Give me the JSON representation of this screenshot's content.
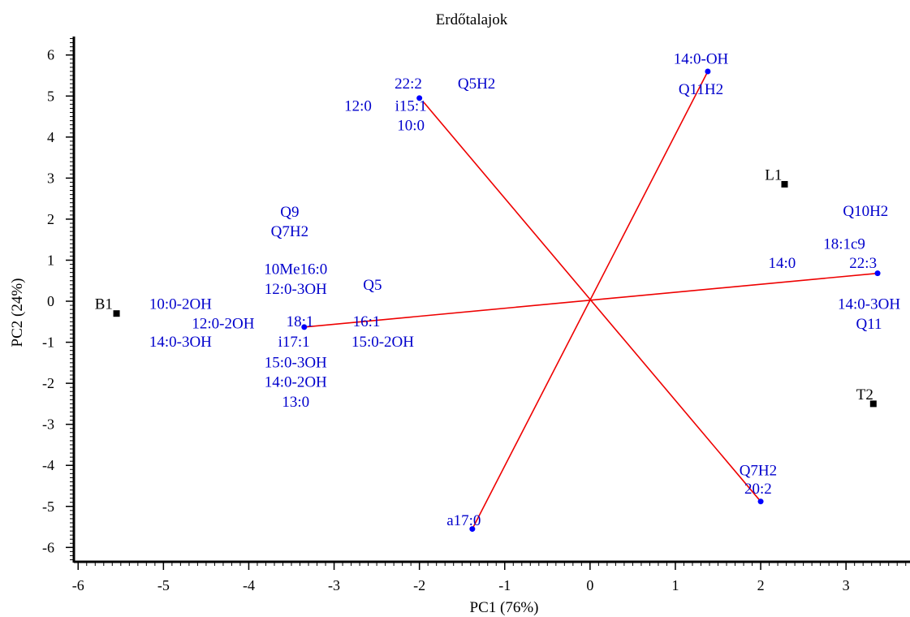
{
  "chart_data": {
    "type": "scatter",
    "title": "Erdőtalajok",
    "xlabel": "PC1 (76%)",
    "ylabel": "PC2 (24%)",
    "xlim": [
      -6.05,
      3.75
    ],
    "ylim": [
      -6.35,
      6.45
    ],
    "xticks": [
      -6,
      -5,
      -4,
      -3,
      -2,
      -1,
      0,
      1,
      2,
      3
    ],
    "yticks": [
      -6,
      -5,
      -4,
      -3,
      -2,
      -1,
      0,
      1,
      2,
      3,
      4,
      5,
      6
    ],
    "colors": {
      "axis": "#000000",
      "sample": "#000000",
      "loading": "#0000ff",
      "vector": "#ee0000",
      "label": "#0000cc"
    },
    "samples": [
      {
        "name": "B1",
        "x": -5.55,
        "y": -0.3
      },
      {
        "name": "L1",
        "x": 2.28,
        "y": 2.85
      },
      {
        "name": "T2",
        "x": 3.32,
        "y": -2.5
      }
    ],
    "loadings": [
      {
        "x": 1.38,
        "y": 5.6
      },
      {
        "x": -2.0,
        "y": 4.95
      },
      {
        "x": -3.35,
        "y": -0.63
      },
      {
        "x": 3.37,
        "y": 0.68
      },
      {
        "x": 2.0,
        "y": -4.88
      },
      {
        "x": -1.38,
        "y": -5.55
      }
    ],
    "vectors": [
      {
        "x1": -1.95,
        "y1": 4.85,
        "x2": 2.0,
        "y2": -4.88
      },
      {
        "x1": -3.35,
        "y1": -0.63,
        "x2": 3.37,
        "y2": 0.68
      },
      {
        "x1": 1.38,
        "y1": 5.6,
        "x2": -1.38,
        "y2": -5.55
      }
    ],
    "labels": [
      {
        "text": "14:0-OH",
        "x": 1.3,
        "y": 5.93
      },
      {
        "text": "Q11H2",
        "x": 1.3,
        "y": 5.18
      },
      {
        "text": "22:2",
        "x": -2.13,
        "y": 5.32
      },
      {
        "text": "Q5H2",
        "x": -1.33,
        "y": 5.32
      },
      {
        "text": "12:0",
        "x": -2.72,
        "y": 4.78
      },
      {
        "text": "i15:1",
        "x": -2.1,
        "y": 4.78
      },
      {
        "text": "10:0",
        "x": -2.1,
        "y": 4.3
      },
      {
        "text": "L1",
        "x": 2.15,
        "y": 3.1
      },
      {
        "text": "Q9",
        "x": -3.52,
        "y": 2.2
      },
      {
        "text": "Q7H2",
        "x": -3.52,
        "y": 1.72
      },
      {
        "text": "Q10H2",
        "x": 3.23,
        "y": 2.22
      },
      {
        "text": "18:1c9",
        "x": 2.98,
        "y": 1.42
      },
      {
        "text": "14:0",
        "x": 2.25,
        "y": 0.95
      },
      {
        "text": "22:3",
        "x": 3.2,
        "y": 0.95
      },
      {
        "text": "10Me16:0",
        "x": -3.45,
        "y": 0.8
      },
      {
        "text": "12:0-3OH",
        "x": -3.45,
        "y": 0.32
      },
      {
        "text": "Q5",
        "x": -2.55,
        "y": 0.42
      },
      {
        "text": "B1",
        "x": -5.7,
        "y": -0.05
      },
      {
        "text": "10:0-2OH",
        "x": -4.8,
        "y": -0.05
      },
      {
        "text": "14:0-3OH",
        "x": 3.27,
        "y": -0.05
      },
      {
        "text": "12:0-2OH",
        "x": -4.3,
        "y": -0.52
      },
      {
        "text": "18:1",
        "x": -3.4,
        "y": -0.47
      },
      {
        "text": "16:1",
        "x": -2.62,
        "y": -0.47
      },
      {
        "text": "Q11",
        "x": 3.27,
        "y": -0.53
      },
      {
        "text": "14:0-3OH",
        "x": -4.8,
        "y": -0.97
      },
      {
        "text": "i17:1",
        "x": -3.47,
        "y": -0.97
      },
      {
        "text": "15:0-2OH",
        "x": -2.43,
        "y": -0.97
      },
      {
        "text": "15:0-3OH",
        "x": -3.45,
        "y": -1.47
      },
      {
        "text": "14:0-2OH",
        "x": -3.45,
        "y": -1.95
      },
      {
        "text": "T2",
        "x": 3.22,
        "y": -2.25
      },
      {
        "text": "13:0",
        "x": -3.45,
        "y": -2.43
      },
      {
        "text": "Q7H2",
        "x": 1.97,
        "y": -4.1
      },
      {
        "text": "20:2",
        "x": 1.97,
        "y": -4.55
      },
      {
        "text": "a17:0",
        "x": -1.48,
        "y": -5.32
      }
    ]
  }
}
